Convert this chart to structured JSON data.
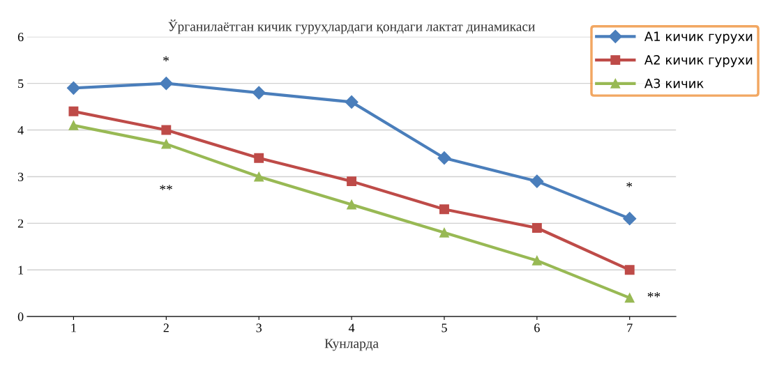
{
  "chart_data": {
    "type": "line",
    "title": "Ўрганилаётган кичик гуруҳлардаги қондаги лактат динамикаси",
    "xlabel": "Кунларда",
    "categories": [
      "1",
      "2",
      "3",
      "4",
      "5",
      "6",
      "7"
    ],
    "series": [
      {
        "name": "A1 кичик гурухи",
        "color": "#4a7ebb",
        "marker": "diamond",
        "values": [
          4.9,
          5.0,
          4.8,
          4.6,
          3.4,
          2.9,
          2.1
        ]
      },
      {
        "name": "A2 кичик гурухи",
        "color": "#be4b48",
        "marker": "square",
        "values": [
          4.4,
          4.0,
          3.4,
          2.9,
          2.3,
          1.9,
          1.0
        ]
      },
      {
        "name": "A3 кичик",
        "color": "#98b954",
        "marker": "triangle",
        "values": [
          4.1,
          3.7,
          3.0,
          2.4,
          1.8,
          1.2,
          0.4
        ]
      }
    ],
    "ylim": [
      0,
      6
    ],
    "yticks": [
      0,
      1,
      2,
      3,
      4,
      5,
      6
    ],
    "grid": "y",
    "legend": "top right",
    "annotations": [
      "*",
      "**",
      "*",
      {
        "text": "**",
        "x": "7",
        "y": 0.4
      }
    ]
  }
}
